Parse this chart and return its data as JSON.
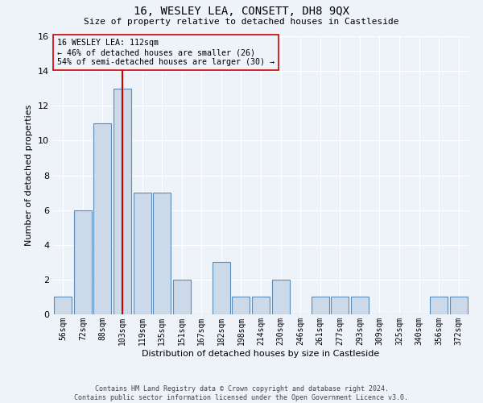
{
  "title_line1": "16, WESLEY LEA, CONSETT, DH8 9QX",
  "title_line2": "Size of property relative to detached houses in Castleside",
  "xlabel": "Distribution of detached houses by size in Castleside",
  "ylabel": "Number of detached properties",
  "annotation_line1": "16 WESLEY LEA: 112sqm",
  "annotation_line2": "← 46% of detached houses are smaller (26)",
  "annotation_line3": "54% of semi-detached houses are larger (30) →",
  "red_line_bin_index": 3,
  "categories": [
    "56sqm",
    "72sqm",
    "88sqm",
    "103sqm",
    "119sqm",
    "135sqm",
    "151sqm",
    "167sqm",
    "182sqm",
    "198sqm",
    "214sqm",
    "230sqm",
    "246sqm",
    "261sqm",
    "277sqm",
    "293sqm",
    "309sqm",
    "325sqm",
    "340sqm",
    "356sqm",
    "372sqm"
  ],
  "values": [
    1,
    6,
    11,
    13,
    7,
    7,
    2,
    0,
    3,
    1,
    1,
    2,
    0,
    1,
    1,
    1,
    0,
    0,
    0,
    1,
    1
  ],
  "bar_color": "#ccd9e8",
  "bar_edge_color": "#5b8db8",
  "red_line_color": "#cc0000",
  "annotation_box_edge_color": "#cc0000",
  "background_color": "#eef2f9",
  "grid_color": "#ffffff",
  "ylim": [
    0,
    16
  ],
  "yticks": [
    0,
    2,
    4,
    6,
    8,
    10,
    12,
    14,
    16
  ],
  "footer_line1": "Contains HM Land Registry data © Crown copyright and database right 2024.",
  "footer_line2": "Contains public sector information licensed under the Open Government Licence v3.0."
}
